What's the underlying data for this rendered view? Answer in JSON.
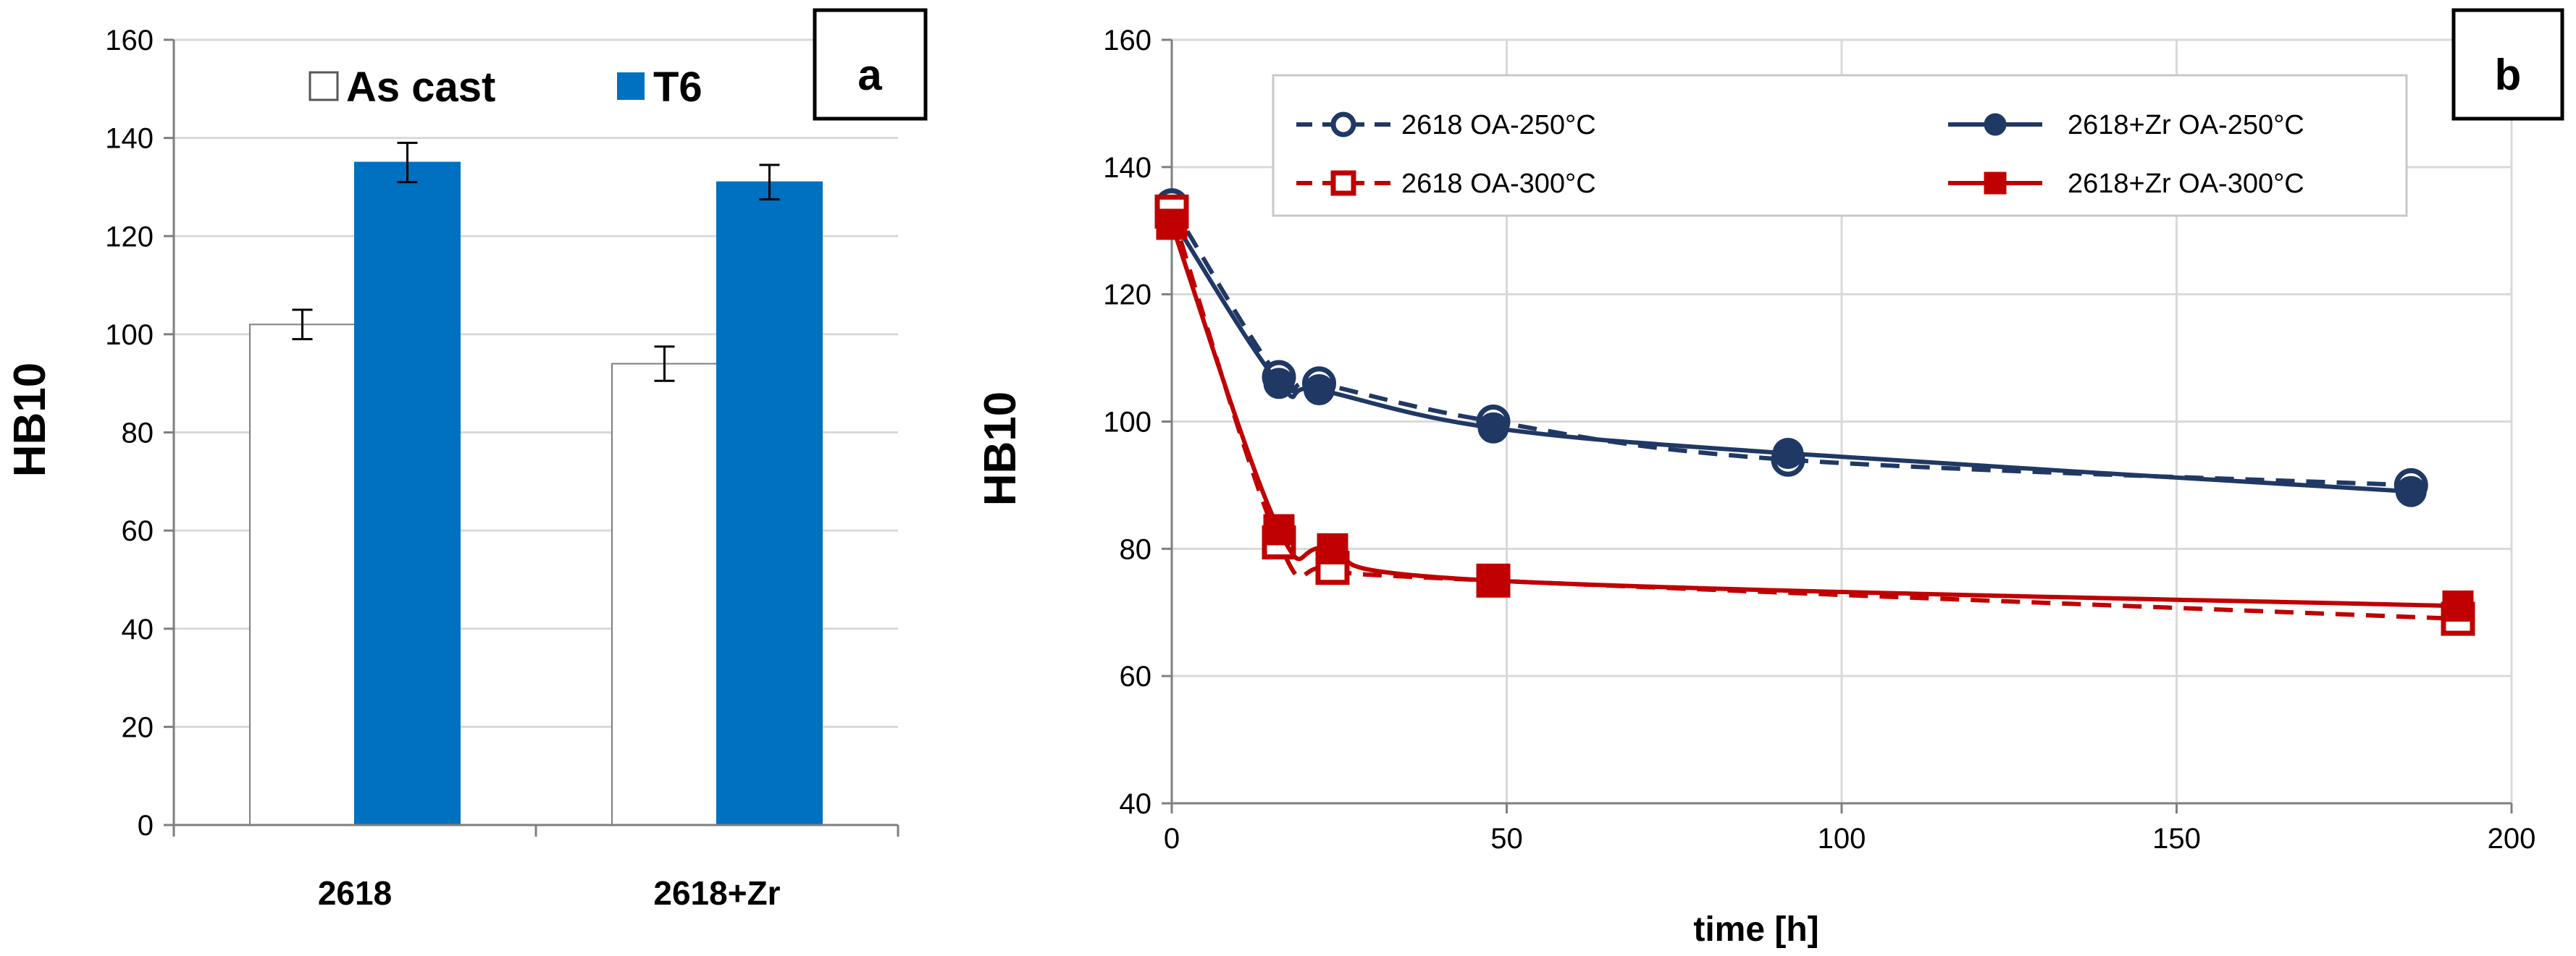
{
  "chart_data": [
    {
      "type": "bar",
      "panel_label": "a",
      "ylabel": "HB10",
      "ylim": [
        0,
        160
      ],
      "yticks": [
        0,
        20,
        40,
        60,
        80,
        100,
        120,
        140,
        160
      ],
      "grid": true,
      "legend_position": "top",
      "categories": [
        "2618",
        "2618+Zr"
      ],
      "series": [
        {
          "name": "As cast",
          "color": "#ffffff",
          "values": [
            102,
            94
          ],
          "errors": [
            3,
            3.5
          ]
        },
        {
          "name": "T6",
          "color": "#0070c0",
          "values": [
            135,
            131
          ],
          "errors": [
            4,
            3.5
          ]
        }
      ]
    },
    {
      "type": "line",
      "panel_label": "b",
      "xlabel": "time  [h]",
      "ylabel": "HB10",
      "xlim": [
        0,
        200
      ],
      "ylim": [
        40,
        160
      ],
      "xticks": [
        0,
        50,
        100,
        150,
        200
      ],
      "yticks": [
        40,
        60,
        80,
        100,
        120,
        140,
        160
      ],
      "grid": true,
      "legend_position": "top",
      "series": [
        {
          "name": "2618  OA-250°C",
          "color": "#203864",
          "dashed": true,
          "marker": "open-circle",
          "x": [
            0,
            16,
            22,
            48,
            92,
            185
          ],
          "y": [
            134,
            107,
            106,
            100,
            94,
            90
          ]
        },
        {
          "name": "2618+Zr  OA-250°C",
          "color": "#203864",
          "dashed": false,
          "marker": "filled-circle",
          "x": [
            0,
            16,
            22,
            48,
            92,
            185
          ],
          "y": [
            132,
            106,
            105,
            99,
            95,
            89
          ]
        },
        {
          "name": "2618  OA-300°C",
          "color": "#c00000",
          "dashed": true,
          "marker": "open-square",
          "x": [
            0,
            16,
            24,
            48,
            192
          ],
          "y": [
            133,
            81,
            77,
            75,
            69
          ]
        },
        {
          "name": "2618+Zr  OA-300°C",
          "color": "#c00000",
          "dashed": false,
          "marker": "filled-square",
          "x": [
            0,
            16,
            24,
            48,
            192
          ],
          "y": [
            131,
            83,
            80,
            75,
            71
          ]
        }
      ]
    }
  ]
}
